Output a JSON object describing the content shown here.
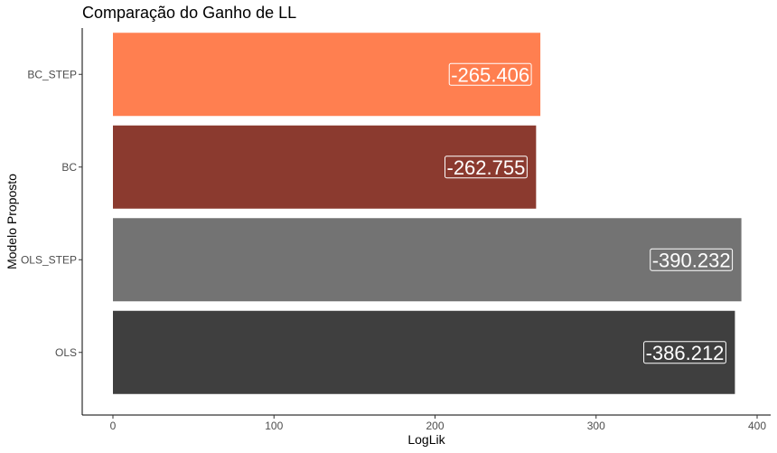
{
  "chart_data": {
    "type": "bar",
    "orientation": "horizontal",
    "title": "Comparação do Ganho de LL",
    "xlabel": "LogLik",
    "ylabel": "Modelo Proposto",
    "categories": [
      "BC_STEP",
      "BC",
      "OLS_STEP",
      "OLS"
    ],
    "values": [
      265.406,
      262.755,
      390.232,
      386.212
    ],
    "data_labels": [
      "-265.406",
      "-262.755",
      "-390.232",
      "-386.212"
    ],
    "colors": [
      "#FF7F50",
      "#8B3A2F",
      "#737373",
      "#3F3F3F"
    ],
    "xlim": [
      0,
      400
    ],
    "xticks": [
      0,
      100,
      200,
      300,
      400
    ],
    "xtick_labels": [
      "0",
      "100",
      "200",
      "300",
      "400"
    ],
    "grid": false,
    "legend": "none"
  }
}
